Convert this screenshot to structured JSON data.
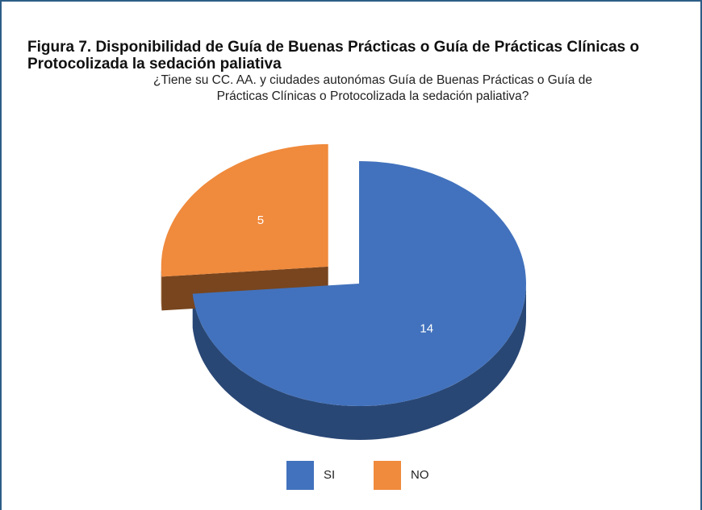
{
  "chart_data": {
    "type": "pie",
    "title": "Figura 7. Disponibilidad de Guía de Buenas Prácticas o Guía de Prácticas Clínicas o Protocolizada la sedación paliativa",
    "subtitle": "¿Tiene su CC. AA. y ciudades autonómas Guía de Buenas Prácticas o Guía de Prácticas Clínicas o Protocolizada la sedación paliativa?",
    "categories": [
      "SI",
      "NO"
    ],
    "values": [
      14,
      5
    ],
    "colors": [
      "#4272bd",
      "#f08a3c"
    ],
    "legend": "bottom"
  }
}
